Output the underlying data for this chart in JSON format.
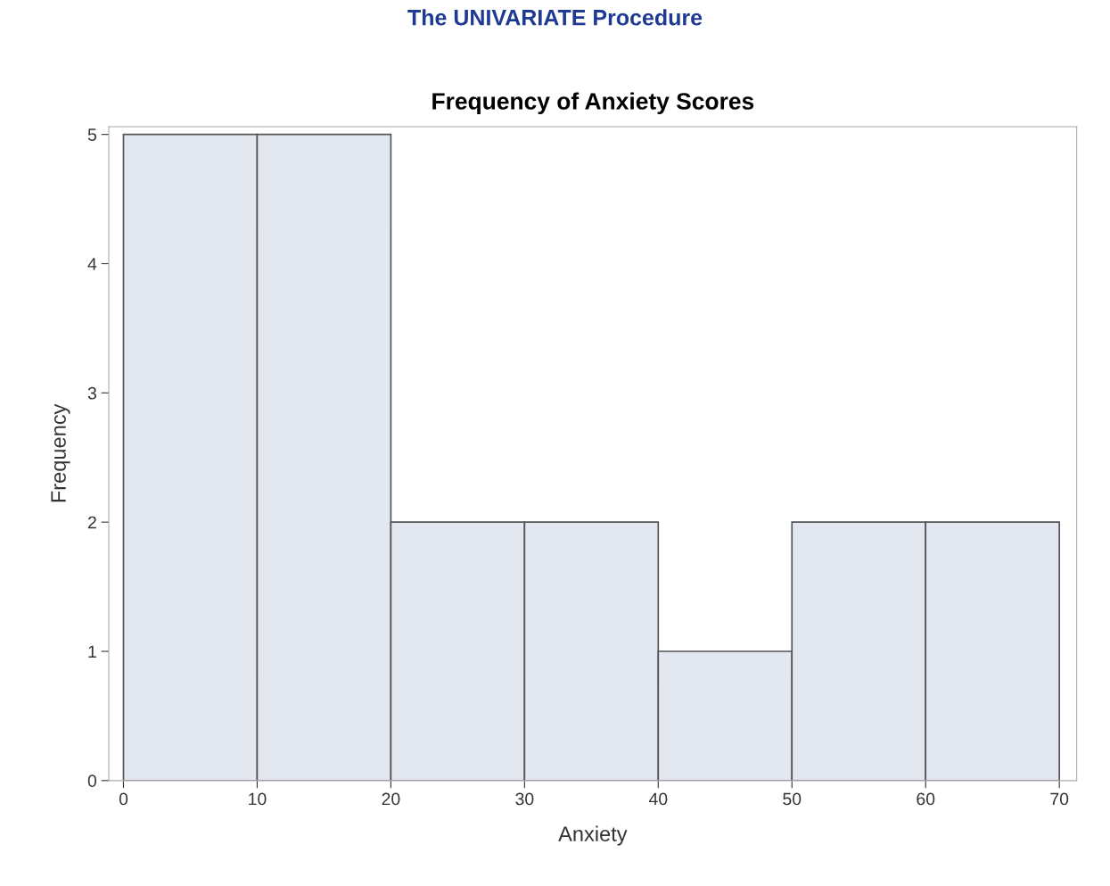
{
  "chart_data": {
    "type": "histogram",
    "title": "Frequency of Anxiety Scores",
    "xlabel": "Anxiety",
    "ylabel": "Frequency",
    "annotations": [
      "The UNIVARIATE Procedure"
    ],
    "bins": [
      0,
      10,
      20,
      30,
      40,
      50,
      60,
      70
    ],
    "values": [
      5,
      5,
      2,
      2,
      1,
      2,
      2
    ],
    "color": "#e3e7f0",
    "xlim": [
      -1.1,
      71.3
    ],
    "xticks": [
      0,
      10,
      20,
      30,
      40,
      50,
      60,
      70
    ],
    "ylim": [
      0,
      5.06
    ],
    "yticks": [
      0,
      1,
      2,
      3,
      4,
      5
    ],
    "grid": false,
    "legend": false
  }
}
